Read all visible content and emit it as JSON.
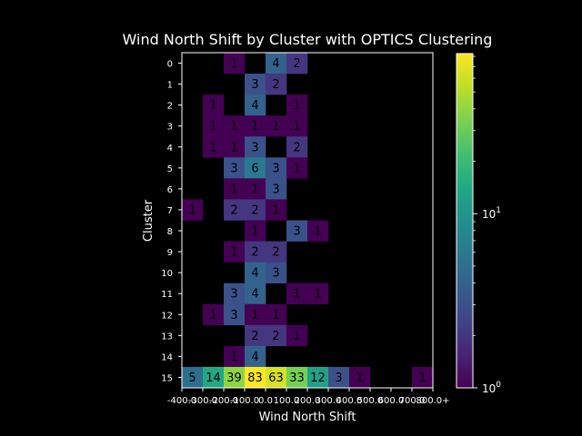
{
  "chart_data": {
    "type": "heatmap",
    "title": "Wind North Shift by Cluster with OPTICS Clustering",
    "xlabel": "Wind North Shift",
    "ylabel": "Cluster",
    "x_tick_labels": [
      "-400.0",
      "-300.0",
      "-200.0",
      "-100.0",
      "0.0",
      "100.0",
      "200.0",
      "300.0",
      "400.0",
      "500.0",
      "600.0",
      "700.0",
      "800.0+"
    ],
    "y_tick_labels": [
      "0",
      "1",
      "2",
      "3",
      "4",
      "5",
      "6",
      "7",
      "8",
      "9",
      "10",
      "11",
      "12",
      "13",
      "14",
      "15"
    ],
    "color_scale": "log",
    "colormap": "viridis",
    "colorbar_ticks": [
      {
        "value": 1,
        "label": "10^0"
      },
      {
        "value": 10,
        "label": "10^1"
      }
    ],
    "vmin": 1,
    "vmax": 83,
    "values": [
      [
        0,
        0,
        1,
        0,
        4,
        2,
        0,
        0,
        0,
        0,
        0,
        0
      ],
      [
        0,
        0,
        0,
        3,
        2,
        0,
        0,
        0,
        0,
        0,
        0,
        0
      ],
      [
        0,
        1,
        0,
        4,
        0,
        1,
        0,
        0,
        0,
        0,
        0,
        0
      ],
      [
        0,
        1,
        1,
        1,
        1,
        1,
        0,
        0,
        0,
        0,
        0,
        0
      ],
      [
        0,
        1,
        1,
        3,
        0,
        2,
        0,
        0,
        0,
        0,
        0,
        0
      ],
      [
        0,
        0,
        3,
        6,
        3,
        1,
        0,
        0,
        0,
        0,
        0,
        0
      ],
      [
        0,
        0,
        1,
        1,
        3,
        0,
        0,
        0,
        0,
        0,
        0,
        0
      ],
      [
        1,
        0,
        2,
        2,
        1,
        0,
        0,
        0,
        0,
        0,
        0,
        0
      ],
      [
        0,
        0,
        0,
        1,
        0,
        3,
        1,
        0,
        0,
        0,
        0,
        0
      ],
      [
        0,
        0,
        1,
        2,
        2,
        0,
        0,
        0,
        0,
        0,
        0,
        0
      ],
      [
        0,
        0,
        0,
        4,
        3,
        0,
        0,
        0,
        0,
        0,
        0,
        0
      ],
      [
        0,
        0,
        3,
        4,
        0,
        1,
        1,
        0,
        0,
        0,
        0,
        0
      ],
      [
        0,
        1,
        3,
        1,
        1,
        0,
        0,
        0,
        0,
        0,
        0,
        0
      ],
      [
        0,
        0,
        0,
        2,
        2,
        1,
        0,
        0,
        0,
        0,
        0,
        0
      ],
      [
        0,
        0,
        1,
        4,
        0,
        0,
        0,
        0,
        0,
        0,
        0,
        0
      ],
      [
        5,
        14,
        39,
        83,
        63,
        33,
        12,
        3,
        1,
        0,
        0,
        1
      ]
    ]
  }
}
